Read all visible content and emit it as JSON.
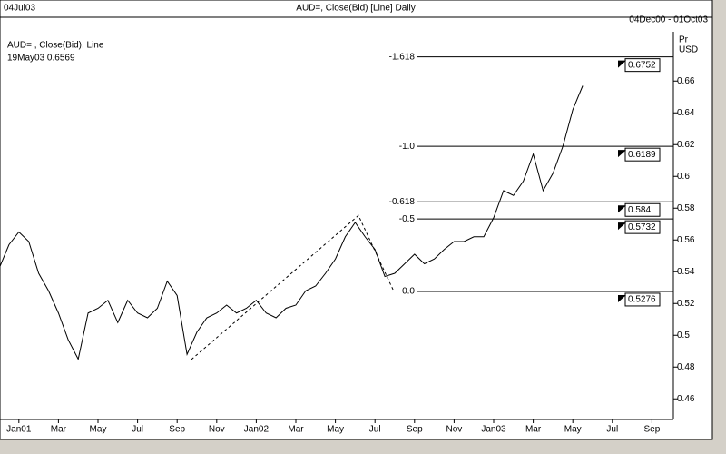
{
  "header": {
    "date": "04Jul03",
    "title": "AUD=, Close(Bid) [Line] Daily",
    "range": "04Dec00 - 01Oct03"
  },
  "legend": {
    "name": "AUD= , Close(Bid), Line",
    "last": "19May03 0.6569"
  },
  "chart_data": {
    "type": "line",
    "color": "#000000",
    "y_axis_label": "Pr",
    "y_axis_unit": "USD",
    "categories": [
      null,
      null,
      "Jan01",
      null,
      null,
      null,
      "Mar",
      null,
      null,
      null,
      "May",
      null,
      null,
      null,
      "Jul",
      null,
      null,
      null,
      "Sep",
      null,
      null,
      null,
      "Nov",
      null,
      null,
      null,
      "Jan02",
      null,
      null,
      null,
      "Mar",
      null,
      null,
      null,
      "May",
      null,
      null,
      null,
      "Jul",
      null,
      null,
      null,
      "Sep",
      null,
      null,
      null,
      "Nov",
      null,
      null,
      null,
      "Jan03",
      null,
      null,
      null,
      "Mar",
      null,
      null,
      null,
      "May",
      null,
      null,
      null,
      "Jul",
      null,
      null,
      null,
      "Sep",
      null
    ],
    "values": [
      0.542,
      0.557,
      0.565,
      0.559,
      0.539,
      0.528,
      0.514,
      0.497,
      0.485,
      0.514,
      0.517,
      0.522,
      0.508,
      0.522,
      0.514,
      0.511,
      0.517,
      0.534,
      0.525,
      0.488,
      0.502,
      0.511,
      0.514,
      0.519,
      0.514,
      0.517,
      0.522,
      0.514,
      0.511,
      0.517,
      0.519,
      0.528,
      0.531,
      0.539,
      0.548,
      0.562,
      0.571,
      0.562,
      0.554,
      0.537,
      0.539,
      0.545,
      0.551,
      0.545,
      0.548,
      0.554,
      0.559,
      0.559,
      0.562,
      0.562,
      0.574,
      0.591,
      0.588,
      0.597,
      0.614,
      0.591,
      0.602,
      0.619,
      0.642,
      0.657,
      null,
      null,
      null,
      null,
      null,
      null,
      null,
      null
    ],
    "ylim": [
      0.447,
      0.691
    ],
    "yticks": [
      0.46,
      0.48,
      0.5,
      0.52,
      0.54,
      0.56,
      0.58,
      0.6,
      0.62,
      0.64,
      0.66
    ],
    "fib_levels": [
      {
        "label": "-1.618",
        "value": 0.6752
      },
      {
        "label": "-1.0",
        "value": 0.6189
      },
      {
        "label": "-0.618",
        "value": 0.584
      },
      {
        "label": "-0.5",
        "value": 0.5732
      },
      {
        "label": "0.0",
        "value": 0.5276
      }
    ],
    "trendline": [
      0.4848,
      0.5754,
      0.5276
    ]
  }
}
